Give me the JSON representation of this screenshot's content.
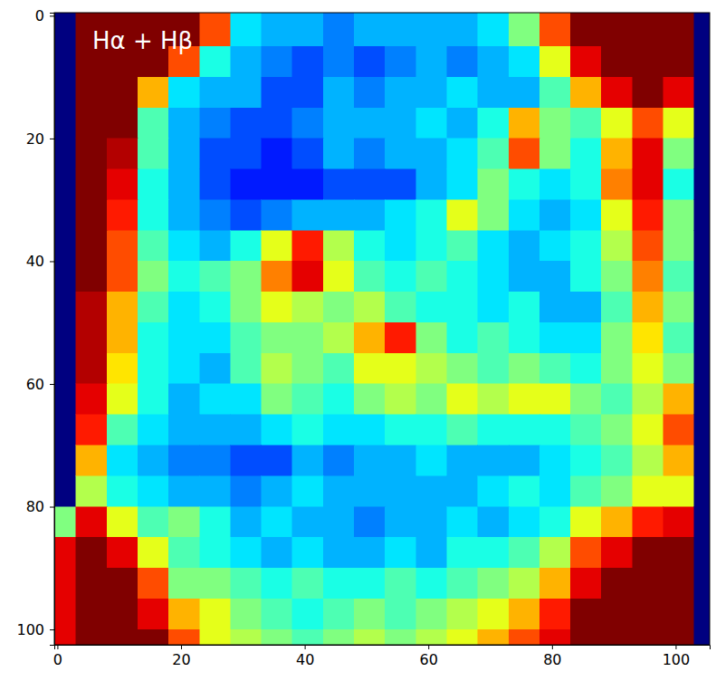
{
  "chart_data": {
    "type": "heatmap",
    "annotation": "Hα + Hβ",
    "color": "jet",
    "color_range": [
      0,
      1
    ],
    "xlim": [
      -0.5,
      105.5
    ],
    "ylim": [
      -0.5,
      102.5
    ],
    "xticks": [
      0,
      20,
      40,
      60,
      80,
      100
    ],
    "yticks": [
      0,
      20,
      40,
      60,
      80,
      100
    ],
    "x_edges": [
      -0.5,
      3,
      8,
      13,
      18,
      23,
      28,
      33,
      38,
      43,
      48,
      53,
      58,
      63,
      68,
      73,
      78,
      83,
      88,
      93,
      98,
      103,
      105.5
    ],
    "y_edges": [
      -0.5,
      5,
      10,
      15,
      20,
      25,
      30,
      35,
      40,
      45,
      50,
      55,
      60,
      65,
      70,
      75,
      80,
      85,
      90,
      95,
      100,
      102.5
    ],
    "cells": [
      [
        0,
        1,
        1,
        1,
        1,
        0.8,
        0.35,
        0.3,
        0.3,
        0.25,
        0.3,
        0.3,
        0.3,
        0.3,
        0.35,
        0.5,
        0.8,
        1,
        1,
        1,
        1,
        0
      ],
      [
        0,
        1,
        1,
        1,
        0.8,
        0.4,
        0.3,
        0.25,
        0.2,
        0.25,
        0.2,
        0.25,
        0.3,
        0.25,
        0.3,
        0.35,
        0.6,
        0.9,
        1,
        1,
        1,
        0
      ],
      [
        0,
        1,
        1,
        0.7,
        0.35,
        0.3,
        0.3,
        0.2,
        0.2,
        0.3,
        0.25,
        0.3,
        0.3,
        0.35,
        0.3,
        0.3,
        0.45,
        0.7,
        0.9,
        1,
        0.9,
        0
      ],
      [
        0,
        1,
        1,
        0.45,
        0.3,
        0.25,
        0.2,
        0.2,
        0.25,
        0.3,
        0.3,
        0.3,
        0.35,
        0.3,
        0.4,
        0.7,
        0.5,
        0.45,
        0.6,
        0.8,
        0.6,
        0
      ],
      [
        0,
        1,
        0.95,
        0.45,
        0.3,
        0.2,
        0.2,
        0.15,
        0.2,
        0.3,
        0.25,
        0.3,
        0.3,
        0.35,
        0.45,
        0.8,
        0.5,
        0.4,
        0.7,
        0.9,
        0.5,
        0
      ],
      [
        0,
        1,
        0.9,
        0.4,
        0.3,
        0.2,
        0.15,
        0.15,
        0.15,
        0.2,
        0.2,
        0.2,
        0.3,
        0.35,
        0.5,
        0.4,
        0.35,
        0.4,
        0.75,
        0.9,
        0.4,
        0
      ],
      [
        0,
        1,
        0.85,
        0.4,
        0.3,
        0.25,
        0.2,
        0.25,
        0.3,
        0.3,
        0.3,
        0.35,
        0.4,
        0.6,
        0.5,
        0.35,
        0.3,
        0.35,
        0.6,
        0.85,
        0.5,
        0
      ],
      [
        0,
        1,
        0.8,
        0.45,
        0.35,
        0.3,
        0.4,
        0.6,
        0.85,
        0.55,
        0.4,
        0.35,
        0.4,
        0.45,
        0.35,
        0.3,
        0.35,
        0.4,
        0.55,
        0.8,
        0.5,
        0
      ],
      [
        0,
        1,
        0.8,
        0.5,
        0.4,
        0.45,
        0.5,
        0.75,
        0.9,
        0.6,
        0.45,
        0.4,
        0.45,
        0.4,
        0.35,
        0.3,
        0.3,
        0.4,
        0.5,
        0.75,
        0.45,
        0
      ],
      [
        0,
        0.95,
        0.7,
        0.45,
        0.35,
        0.4,
        0.5,
        0.6,
        0.55,
        0.5,
        0.55,
        0.45,
        0.4,
        0.4,
        0.35,
        0.4,
        0.3,
        0.3,
        0.45,
        0.7,
        0.5,
        0
      ],
      [
        0,
        0.95,
        0.7,
        0.4,
        0.35,
        0.35,
        0.45,
        0.5,
        0.5,
        0.55,
        0.7,
        0.85,
        0.5,
        0.4,
        0.45,
        0.4,
        0.35,
        0.35,
        0.5,
        0.65,
        0.45,
        0
      ],
      [
        0,
        0.95,
        0.65,
        0.4,
        0.35,
        0.3,
        0.45,
        0.55,
        0.5,
        0.45,
        0.6,
        0.6,
        0.55,
        0.5,
        0.45,
        0.5,
        0.45,
        0.4,
        0.5,
        0.6,
        0.5,
        0
      ],
      [
        0,
        0.9,
        0.6,
        0.4,
        0.3,
        0.35,
        0.35,
        0.5,
        0.45,
        0.4,
        0.5,
        0.55,
        0.5,
        0.6,
        0.55,
        0.6,
        0.6,
        0.5,
        0.45,
        0.55,
        0.7,
        0
      ],
      [
        0,
        0.85,
        0.45,
        0.35,
        0.3,
        0.3,
        0.3,
        0.35,
        0.4,
        0.35,
        0.35,
        0.4,
        0.4,
        0.45,
        0.4,
        0.4,
        0.4,
        0.45,
        0.5,
        0.6,
        0.8,
        0
      ],
      [
        0,
        0.7,
        0.35,
        0.3,
        0.25,
        0.25,
        0.2,
        0.2,
        0.3,
        0.25,
        0.3,
        0.3,
        0.35,
        0.3,
        0.3,
        0.3,
        0.35,
        0.4,
        0.45,
        0.55,
        0.7,
        0
      ],
      [
        0,
        0.55,
        0.4,
        0.35,
        0.3,
        0.3,
        0.25,
        0.3,
        0.35,
        0.3,
        0.3,
        0.3,
        0.3,
        0.3,
        0.35,
        0.4,
        0.35,
        0.45,
        0.5,
        0.6,
        0.6,
        0
      ],
      [
        0.5,
        0.9,
        0.6,
        0.45,
        0.5,
        0.4,
        0.3,
        0.35,
        0.3,
        0.3,
        0.25,
        0.3,
        0.3,
        0.35,
        0.3,
        0.35,
        0.4,
        0.6,
        0.7,
        0.85,
        0.9,
        0
      ],
      [
        0.9,
        1,
        0.9,
        0.6,
        0.45,
        0.4,
        0.35,
        0.3,
        0.35,
        0.3,
        0.3,
        0.35,
        0.3,
        0.4,
        0.4,
        0.45,
        0.55,
        0.8,
        0.9,
        1,
        1,
        0
      ],
      [
        0.9,
        1,
        1,
        0.8,
        0.5,
        0.5,
        0.45,
        0.4,
        0.45,
        0.4,
        0.4,
        0.45,
        0.4,
        0.45,
        0.5,
        0.55,
        0.7,
        0.9,
        1,
        1,
        1,
        0
      ],
      [
        0.9,
        1,
        1,
        0.9,
        0.7,
        0.6,
        0.5,
        0.45,
        0.4,
        0.45,
        0.5,
        0.45,
        0.5,
        0.55,
        0.6,
        0.7,
        0.85,
        1,
        1,
        1,
        1,
        0
      ],
      [
        0.9,
        1,
        1,
        1,
        0.8,
        0.6,
        0.55,
        0.5,
        0.45,
        0.5,
        0.55,
        0.5,
        0.55,
        0.6,
        0.7,
        0.8,
        0.9,
        1,
        1,
        1,
        1,
        0
      ]
    ]
  }
}
